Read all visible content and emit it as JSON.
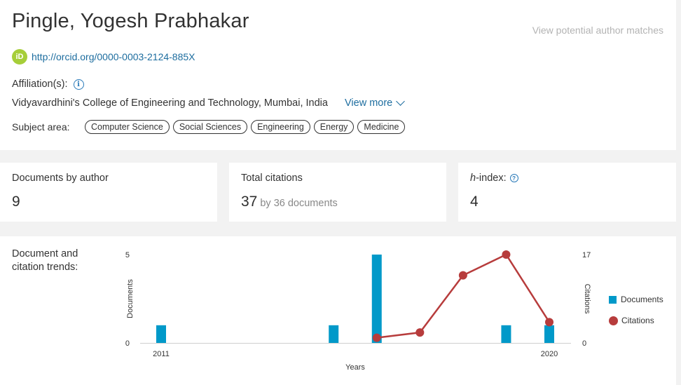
{
  "profile": {
    "name": "Pingle, Yogesh Prabhakar",
    "potential_matches_link": "View potential author matches",
    "orcid_icon_text": "iD",
    "orcid_url": "http://orcid.org/0000-0003-2124-885X",
    "affiliation_label": "Affiliation(s):",
    "info_icon_text": "i",
    "affiliation": "Vidyavardhini's College of Engineering and Technology, Mumbai, India",
    "view_more": "View more",
    "subject_area_label": "Subject area:",
    "subject_areas": [
      "Computer Science",
      "Social Sciences",
      "Engineering",
      "Energy",
      "Medicine"
    ]
  },
  "metrics": {
    "documents": {
      "label": "Documents by author",
      "value": "9"
    },
    "citations": {
      "label": "Total citations",
      "value": "37",
      "sub": "by 36 documents"
    },
    "hindex": {
      "label_italic": "h",
      "label_rest": "-index:",
      "help_icon_text": "?",
      "value": "4"
    }
  },
  "trends": {
    "label": "Document and citation trends:"
  },
  "chart_data": {
    "type": "bar+line",
    "x": [
      2011,
      2012,
      2013,
      2014,
      2015,
      2016,
      2017,
      2018,
      2019,
      2020
    ],
    "x_tick_labels": [
      "2011",
      "2020"
    ],
    "xlabel": "Years",
    "series": [
      {
        "name": "Documents",
        "type": "bar",
        "axis": "left",
        "values": [
          1,
          0,
          0,
          0,
          1,
          5,
          0,
          0,
          1,
          1
        ],
        "color": "#0199c9"
      },
      {
        "name": "Citations",
        "type": "line",
        "axis": "right",
        "values": [
          null,
          null,
          null,
          null,
          null,
          1,
          2,
          13,
          17,
          4
        ],
        "color": "#b73c3c"
      }
    ],
    "y_left": {
      "label": "Documents",
      "ylim": [
        0,
        5
      ],
      "ticks": [
        "0",
        "5"
      ]
    },
    "y_right": {
      "label": "Citations",
      "ylim": [
        0,
        17
      ],
      "ticks": [
        "0",
        "17"
      ]
    },
    "legend": {
      "position": "right",
      "items": [
        "Documents",
        "Citations"
      ]
    }
  }
}
